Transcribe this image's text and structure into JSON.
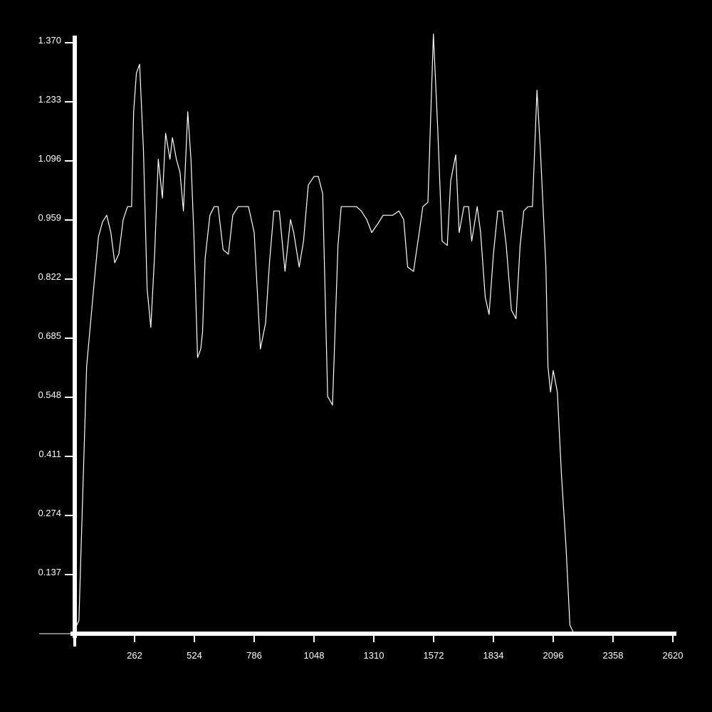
{
  "chart_data": {
    "type": "line",
    "title": "",
    "xlabel": "",
    "ylabel": "",
    "xlim": [
      0,
      2620
    ],
    "ylim": [
      0,
      1.37
    ],
    "grid": false,
    "background": "#000000",
    "line_color": "#ffffff",
    "axis_color": "#ffffff",
    "x_ticks": [
      "262",
      "524",
      "786",
      "1048",
      "1310",
      "1572",
      "1834",
      "2096",
      "2358",
      "2620"
    ],
    "y_ticks": [
      "0.137",
      "0.274",
      "0.411",
      "0.548",
      "0.685",
      "0.822",
      "0.959",
      "1.096",
      "1.233",
      "1.370"
    ],
    "series": [
      {
        "x": [
          0,
          18,
          52,
          86,
          104,
          122,
          140,
          158,
          175,
          193,
          212,
          231,
          249,
          258,
          270,
          284,
          301,
          317,
          333,
          350,
          366,
          384,
          398,
          417,
          428,
          445,
          461,
          476,
          495,
          509,
          522,
          538,
          552,
          560,
          571,
          592,
          611,
          628,
          650,
          673,
          692,
          716,
          734,
          761,
          786,
          813,
          836,
          853,
          872,
          896,
          921,
          945,
          959,
          983,
          1002,
          1023,
          1048,
          1067,
          1086,
          1108,
          1129,
          1153,
          1167,
          1191,
          1216,
          1234,
          1255,
          1279,
          1301,
          1327,
          1351,
          1372,
          1393,
          1420,
          1441,
          1458,
          1484,
          1509,
          1525,
          1547,
          1571,
          1590,
          1609,
          1632,
          1647,
          1669,
          1684,
          1705,
          1725,
          1739,
          1763,
          1778,
          1798,
          1815,
          1834,
          1853,
          1872,
          1890,
          1913,
          1933,
          1951,
          1967,
          1986,
          2005,
          2025,
          2040,
          2064,
          2073,
          2084,
          2096,
          2114,
          2132,
          2152,
          2169,
          2187,
          2203,
          2223,
          2237,
          2257
        ],
        "y": [
          0.01,
          0.03,
          0.62,
          0.82,
          0.92,
          0.955,
          0.97,
          0.93,
          0.86,
          0.88,
          0.96,
          0.99,
          0.99,
          1.21,
          1.3,
          1.32,
          1.12,
          0.8,
          0.71,
          0.88,
          1.1,
          1.01,
          1.16,
          1.1,
          1.15,
          1.1,
          1.07,
          0.98,
          1.21,
          1.1,
          0.92,
          0.64,
          0.66,
          0.7,
          0.87,
          0.97,
          0.99,
          0.99,
          0.89,
          0.88,
          0.97,
          0.99,
          0.99,
          0.99,
          0.93,
          0.66,
          0.72,
          0.86,
          0.98,
          0.98,
          0.84,
          0.96,
          0.93,
          0.85,
          0.91,
          1.04,
          1.06,
          1.06,
          1.02,
          0.55,
          0.53,
          0.9,
          0.99,
          0.99,
          0.99,
          0.99,
          0.98,
          0.96,
          0.93,
          0.95,
          0.97,
          0.97,
          0.97,
          0.98,
          0.96,
          0.85,
          0.84,
          0.93,
          0.99,
          1.0,
          1.39,
          1.17,
          0.91,
          0.9,
          1.05,
          1.11,
          0.93,
          0.99,
          0.99,
          0.91,
          0.99,
          0.93,
          0.78,
          0.74,
          0.88,
          0.98,
          0.98,
          0.9,
          0.75,
          0.73,
          0.9,
          0.98,
          0.99,
          0.99,
          1.26,
          1.12,
          0.85,
          0.62,
          0.56,
          0.61,
          0.56,
          0.37,
          0.2,
          0.02,
          0.0,
          0.0,
          0.0,
          0.0,
          0.0
        ]
      }
    ]
  }
}
